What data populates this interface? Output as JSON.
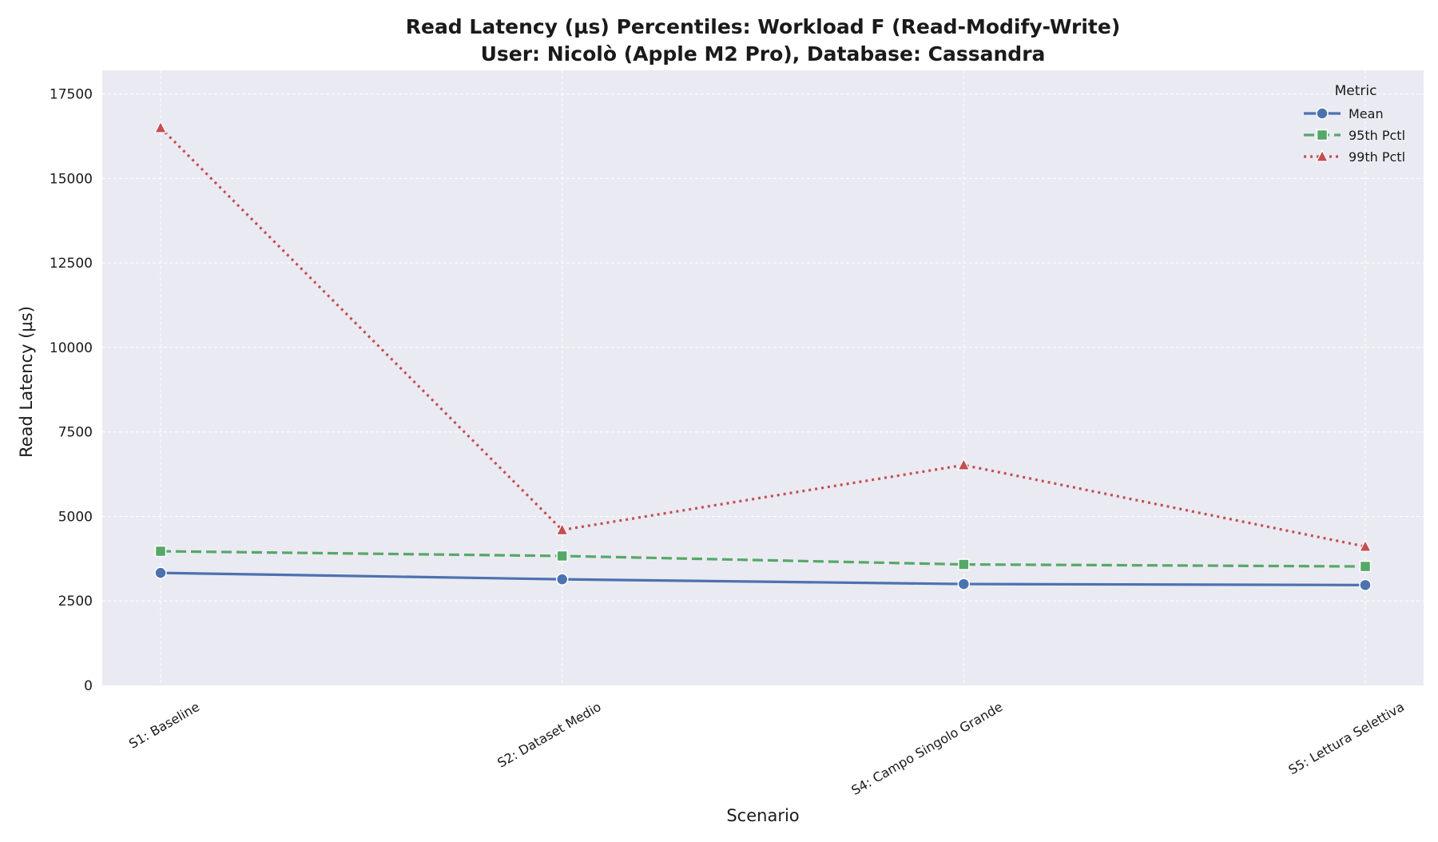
{
  "chart_data": {
    "type": "line",
    "title": "Read Latency (µs) Percentiles: Workload F (Read-Modify-Write)",
    "subtitle": "User: Nicolò (Apple M2 Pro), Database: Cassandra",
    "xlabel": "Scenario",
    "ylabel": "Read Latency (µs)",
    "categories": [
      "S1: Baseline",
      "S2: Dataset Medio",
      "S4: Campo Singolo Grande",
      "S5: Lettura Selettiva"
    ],
    "ylim": [
      0,
      18200
    ],
    "yticks": [
      0,
      2500,
      5000,
      7500,
      10000,
      12500,
      15000,
      17500
    ],
    "grid": true,
    "legend": {
      "title": "Metric",
      "placement": "top-right"
    },
    "series": [
      {
        "name": "Mean",
        "values": [
          3330,
          3140,
          3000,
          2970
        ],
        "color": "#4c72b0",
        "dash": "solid",
        "marker": "circle"
      },
      {
        "name": "95th Pctl",
        "values": [
          3970,
          3830,
          3580,
          3520
        ],
        "color": "#55a868",
        "dash": "dashed",
        "marker": "square"
      },
      {
        "name": "99th Pctl",
        "values": [
          16500,
          4600,
          6520,
          4110
        ],
        "color": "#c44e52",
        "dash": "dotted",
        "marker": "triangle"
      }
    ],
    "plot_background": "#eaeaf2",
    "grid_color": "#ffffff"
  }
}
